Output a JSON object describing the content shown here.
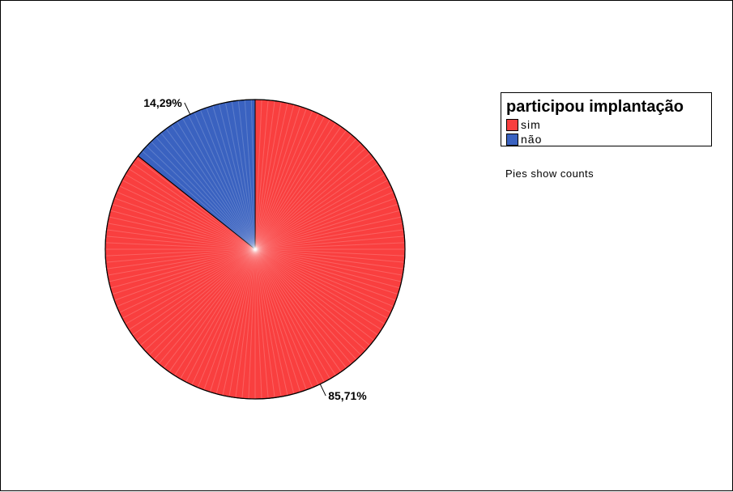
{
  "chart_data": {
    "type": "pie",
    "title": "",
    "categories": [
      "sim",
      "não"
    ],
    "values": [
      85.71,
      14.29
    ],
    "data_labels": [
      "85,71%",
      "14,29%"
    ],
    "colors": [
      "#f93f3f",
      "#3a62c0"
    ],
    "start_angle": "12 o'clock, clockwise",
    "legend": {
      "title": "participou implantação",
      "placement": "top-right"
    },
    "note": "Pies show counts"
  }
}
